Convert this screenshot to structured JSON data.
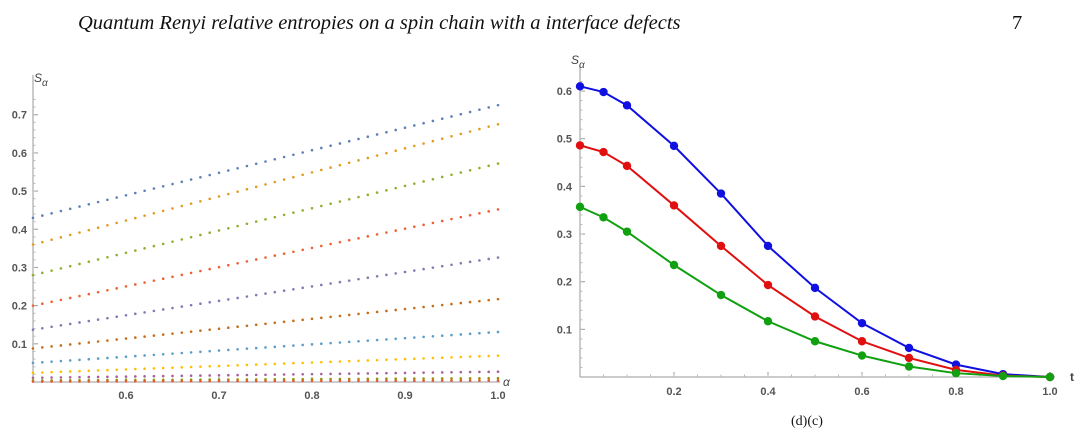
{
  "page": {
    "title": "Quantum Renyi relative entropies on a spin chain with a interface defects",
    "page_number": "7",
    "caption_fragment": "(d)(c)"
  },
  "chart_data": [
    {
      "type": "scatter",
      "xlabel": "α",
      "ylabel": "S",
      "ylabel_sub": "α",
      "xlim": [
        0.5,
        1.0
      ],
      "ylim": [
        0,
        0.77
      ],
      "xticks": [
        "0.6",
        "0.7",
        "0.8",
        "0.9",
        "1.0"
      ],
      "yticks": [
        "0.1",
        "0.2",
        "0.3",
        "0.4",
        "0.5",
        "0.6",
        "0.7"
      ],
      "series": [
        {
          "color": "#5e81b5",
          "start": 0.43,
          "end": 0.725
        },
        {
          "color": "#e19c24",
          "start": 0.36,
          "end": 0.675
        },
        {
          "color": "#8fb032",
          "start": 0.28,
          "end": 0.572
        },
        {
          "color": "#eb6235",
          "start": 0.2,
          "end": 0.452
        },
        {
          "color": "#8778b3",
          "start": 0.137,
          "end": 0.326
        },
        {
          "color": "#c56e1a",
          "start": 0.088,
          "end": 0.217
        },
        {
          "color": "#5d9ec7",
          "start": 0.05,
          "end": 0.131
        },
        {
          "color": "#ffbf00",
          "start": 0.024,
          "end": 0.069
        },
        {
          "color": "#a5609d",
          "start": 0.011,
          "end": 0.027
        },
        {
          "color": "#929600",
          "start": 0.004,
          "end": 0.01
        },
        {
          "color": "#e95536",
          "start": 0.001,
          "end": 0.004
        }
      ]
    },
    {
      "type": "line",
      "xlabel": "t",
      "ylabel": "S",
      "ylabel_sub": "α",
      "xlim": [
        0,
        1.0
      ],
      "ylim": [
        0,
        0.64
      ],
      "xticks": [
        "0.2",
        "0.4",
        "0.6",
        "0.8",
        "1.0"
      ],
      "yticks": [
        "0.1",
        "0.2",
        "0.3",
        "0.4",
        "0.5",
        "0.6"
      ],
      "x": [
        0,
        0.05,
        0.1,
        0.2,
        0.3,
        0.4,
        0.5,
        0.6,
        0.7,
        0.8,
        0.9,
        1.0
      ],
      "series": [
        {
          "color": "#1010e0",
          "values": [
            0.61,
            0.598,
            0.57,
            0.485,
            0.385,
            0.275,
            0.187,
            0.113,
            0.061,
            0.026,
            0.006,
            0.0
          ]
        },
        {
          "color": "#e01010",
          "values": [
            0.486,
            0.472,
            0.443,
            0.36,
            0.275,
            0.193,
            0.127,
            0.075,
            0.04,
            0.015,
            0.003,
            0.0
          ]
        },
        {
          "color": "#10a010",
          "values": [
            0.357,
            0.335,
            0.305,
            0.235,
            0.172,
            0.117,
            0.075,
            0.045,
            0.022,
            0.008,
            0.002,
            0.0
          ]
        }
      ]
    }
  ]
}
